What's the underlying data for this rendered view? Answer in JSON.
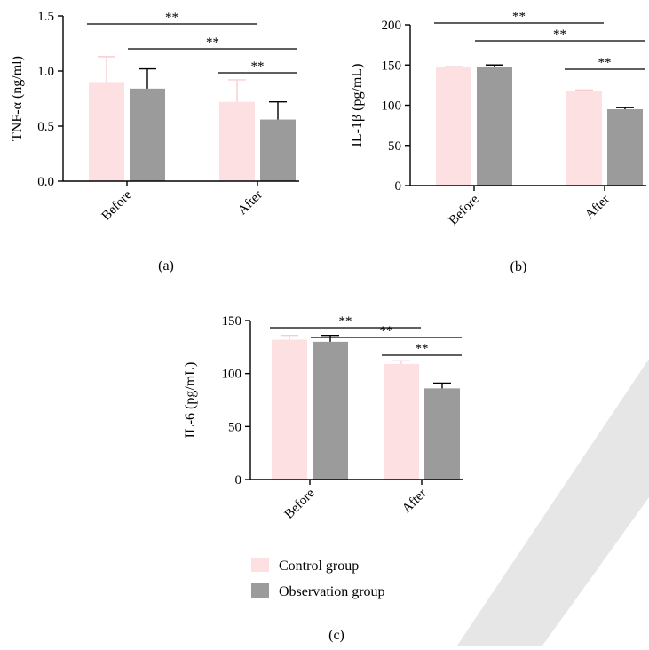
{
  "colors": {
    "control": "#fde1e2",
    "observation": "#9b9b9b",
    "watermark": "#e6e6e6"
  },
  "legend": {
    "placement": "bottom-center",
    "items": [
      {
        "label": "Control group",
        "series": 0
      },
      {
        "label": "Observation group",
        "series": 1
      }
    ]
  },
  "chart_data": [
    {
      "type": "bar",
      "caption": "(a)",
      "categories": [
        "Before",
        "After"
      ],
      "ylabel": "TNF-α (ng/ml)",
      "ylim": [
        0,
        1.5
      ],
      "yticks": [
        "0.0",
        "0.5",
        "1.0",
        "1.5"
      ],
      "ytickvals": [
        0,
        0.5,
        1.0,
        1.5
      ],
      "series": [
        {
          "name": "Control group",
          "values": [
            0.9,
            0.72
          ],
          "errors": [
            0.23,
            0.2
          ]
        },
        {
          "name": "Observation group",
          "values": [
            0.84,
            0.56
          ],
          "errors": [
            0.18,
            0.16
          ]
        }
      ],
      "significance": [
        {
          "from": [
            0,
            0
          ],
          "to": [
            1,
            0
          ],
          "label": "**"
        },
        {
          "from": [
            0,
            1
          ],
          "to": [
            1,
            1
          ],
          "label": "**"
        },
        {
          "from": [
            1,
            0
          ],
          "to": [
            1,
            1
          ],
          "label": "**"
        }
      ]
    },
    {
      "type": "bar",
      "caption": "(b)",
      "categories": [
        "Before",
        "After"
      ],
      "ylabel": "IL-1β (pg/mL)",
      "ylim": [
        0,
        200
      ],
      "yticks": [
        "0",
        "50",
        "100",
        "150",
        "200"
      ],
      "ytickvals": [
        0,
        50,
        100,
        150,
        200
      ],
      "series": [
        {
          "name": "Control group",
          "values": [
            147,
            118
          ],
          "errors": [
            1,
            1
          ]
        },
        {
          "name": "Observation group",
          "values": [
            147,
            95
          ],
          "errors": [
            3,
            2
          ]
        }
      ],
      "significance": [
        {
          "from": [
            0,
            0
          ],
          "to": [
            1,
            0
          ],
          "label": "**"
        },
        {
          "from": [
            0,
            1
          ],
          "to": [
            1,
            1
          ],
          "label": "**"
        },
        {
          "from": [
            1,
            0
          ],
          "to": [
            1,
            1
          ],
          "label": "**"
        }
      ]
    },
    {
      "type": "bar",
      "caption": "(c)",
      "categories": [
        "Before",
        "After"
      ],
      "ylabel": "IL-6 (pg/mL)",
      "ylim": [
        0,
        150
      ],
      "yticks": [
        "0",
        "50",
        "100",
        "150"
      ],
      "ytickvals": [
        0,
        50,
        100,
        150
      ],
      "series": [
        {
          "name": "Control group",
          "values": [
            132,
            109
          ],
          "errors": [
            4,
            3
          ]
        },
        {
          "name": "Observation group",
          "values": [
            130,
            86
          ],
          "errors": [
            6,
            5
          ]
        }
      ],
      "significance": [
        {
          "from": [
            0,
            0
          ],
          "to": [
            1,
            0
          ],
          "label": "**"
        },
        {
          "from": [
            0,
            1
          ],
          "to": [
            1,
            1
          ],
          "label": "**"
        },
        {
          "from": [
            1,
            0
          ],
          "to": [
            1,
            1
          ],
          "label": "**"
        }
      ]
    }
  ]
}
